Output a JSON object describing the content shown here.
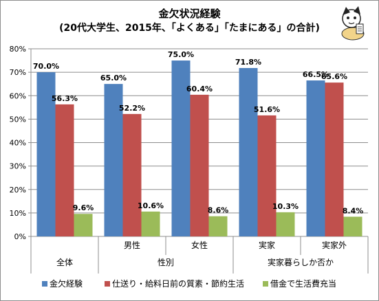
{
  "title_line1": "金欠状況経験",
  "title_line2": "(20代大学生、2015年、「よくある」「たまにある」の合計)",
  "chart_data": {
    "type": "bar",
    "title": "金欠状況経験",
    "subtitle": "(20代大学生、2015年、「よくある」「たまにある」の合計)",
    "categories": [
      "全体",
      "男性",
      "女性",
      "実家",
      "実家外"
    ],
    "category_groups": [
      {
        "label": "全体",
        "members": [
          "全体"
        ]
      },
      {
        "label": "性別",
        "members": [
          "男性",
          "女性"
        ]
      },
      {
        "label": "実家暮らしか否か",
        "members": [
          "実家",
          "実家外"
        ]
      }
    ],
    "series": [
      {
        "name": "金欠経験",
        "color": "#4f81bd",
        "values": [
          70.0,
          65.0,
          75.0,
          71.8,
          66.5
        ]
      },
      {
        "name": "仕送り・給料日前の質素・節約生活",
        "color": "#c0504d",
        "values": [
          56.3,
          52.2,
          60.4,
          51.6,
          65.6
        ]
      },
      {
        "name": "借金で生活費充当",
        "color": "#9bbb59",
        "values": [
          9.6,
          10.6,
          8.6,
          10.3,
          8.4
        ]
      }
    ],
    "data_labels": [
      [
        "70.0%",
        "65.0%",
        "75.0%",
        "71.8%",
        "66.5%"
      ],
      [
        "56.3%",
        "52.2%",
        "60.4%",
        "51.6%",
        "65.6%"
      ],
      [
        "9.6%",
        "10.6%",
        "8.6%",
        "10.3%",
        "8.4%"
      ]
    ],
    "ylim": [
      0,
      80
    ],
    "yticks": [
      "0%",
      "10%",
      "20%",
      "30%",
      "40%",
      "50%",
      "60%",
      "70%",
      "80%"
    ],
    "grid": true,
    "legend_position": "bottom",
    "xlabel": "",
    "ylabel": ""
  }
}
